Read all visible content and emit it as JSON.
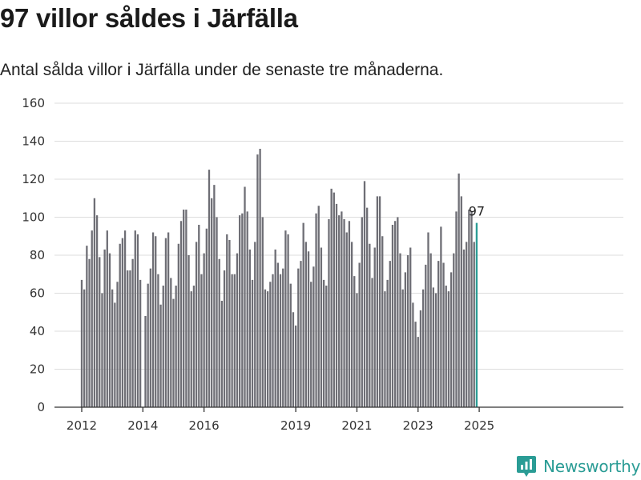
{
  "title": "97 villor såldes i Järfälla",
  "subtitle": "Antal sålda villor i Järfälla under de senaste tre månaderna.",
  "brand": "Newsworthy",
  "colors": {
    "bar": "#6e6e75",
    "highlight": "#2a9c95",
    "grid": "#dddddd",
    "axis": "#333333"
  },
  "chart_data": {
    "type": "bar",
    "x_start": "2012-01",
    "interval": "month",
    "xtick_labels": [
      "2012",
      "2014",
      "2016",
      "2019",
      "2021",
      "2023",
      "2025"
    ],
    "ylim": [
      0,
      160
    ],
    "yticks": [
      0,
      20,
      40,
      60,
      80,
      100,
      120,
      140,
      160
    ],
    "grid": true,
    "highlight_label": "97",
    "values": [
      67,
      62,
      85,
      78,
      93,
      110,
      101,
      79,
      60,
      83,
      93,
      81,
      62,
      55,
      66,
      86,
      89,
      93,
      72,
      72,
      78,
      93,
      91,
      67,
      0,
      48,
      65,
      73,
      92,
      90,
      70,
      54,
      64,
      89,
      92,
      68,
      57,
      64,
      86,
      98,
      104,
      104,
      80,
      61,
      64,
      87,
      96,
      70,
      81,
      94,
      125,
      110,
      117,
      100,
      78,
      56,
      72,
      91,
      88,
      70,
      70,
      81,
      101,
      102,
      116,
      103,
      83,
      67,
      87,
      133,
      136,
      100,
      62,
      61,
      66,
      70,
      83,
      76,
      70,
      73,
      93,
      91,
      65,
      50,
      43,
      73,
      77,
      97,
      87,
      82,
      66,
      74,
      102,
      106,
      84,
      67,
      64,
      99,
      115,
      113,
      107,
      101,
      103,
      99,
      92,
      98,
      87,
      69,
      60,
      76,
      100,
      119,
      105,
      86,
      68,
      84,
      111,
      111,
      90,
      61,
      67,
      77,
      96,
      98,
      100,
      81,
      62,
      71,
      80,
      84,
      55,
      45,
      37,
      51,
      62,
      75,
      92,
      81,
      63,
      60,
      77,
      95,
      76,
      64,
      61,
      71,
      81,
      103,
      123,
      111,
      83,
      87,
      104,
      103,
      87,
      97
    ]
  }
}
